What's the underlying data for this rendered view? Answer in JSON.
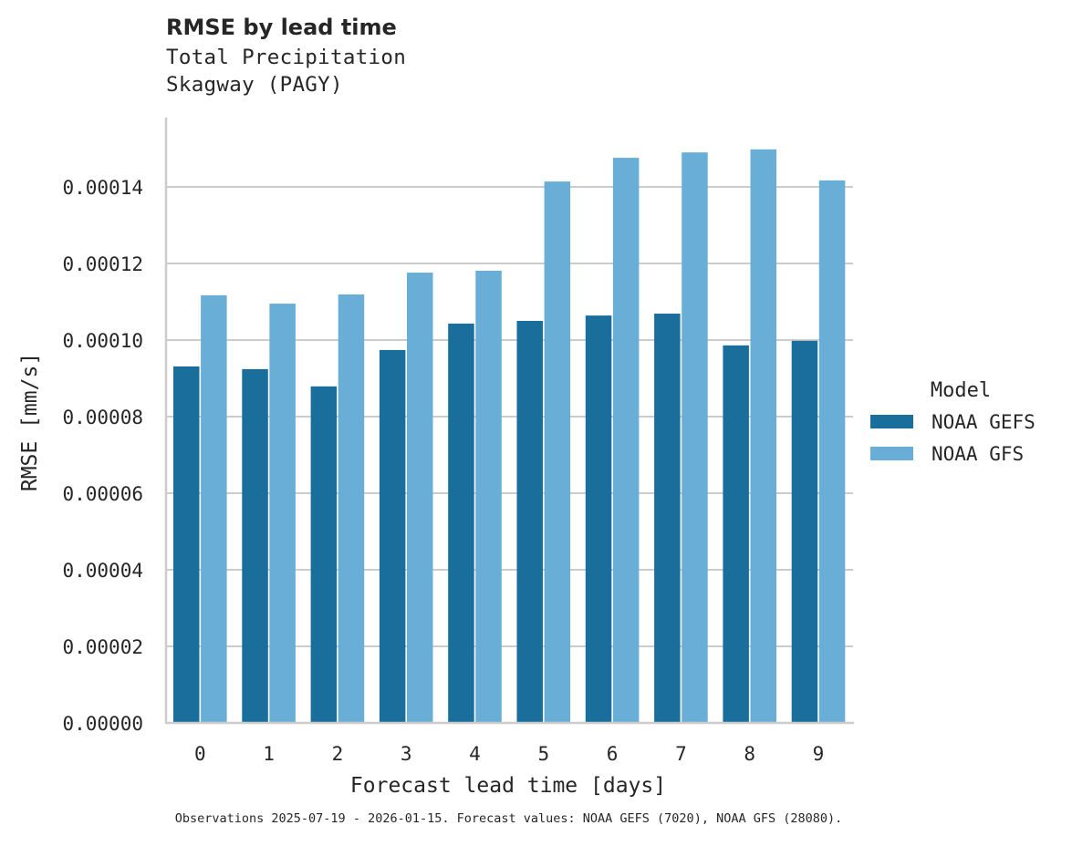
{
  "header": {
    "title": "RMSE by lead time",
    "subtitle_line1": "Total Precipitation",
    "subtitle_line2": "Skagway (PAGY)"
  },
  "footnote": "Observations 2025-07-19 - 2026-01-15. Forecast values: NOAA GEFS (7020), NOAA GFS (28080).",
  "legend": {
    "title": "Model",
    "items": [
      {
        "label": "NOAA GEFS",
        "color": "#1a6e9c"
      },
      {
        "label": "NOAA GFS",
        "color": "#68aed6"
      }
    ]
  },
  "chart_data": {
    "type": "bar",
    "title": "RMSE by lead time",
    "subtitle": "Total Precipitation — Skagway (PAGY)",
    "xlabel": "Forecast lead time [days]",
    "ylabel": "RMSE [mm/s]",
    "categories": [
      "0",
      "1",
      "2",
      "3",
      "4",
      "5",
      "6",
      "7",
      "8",
      "9"
    ],
    "series": [
      {
        "name": "NOAA GEFS",
        "color": "#1a6e9c",
        "values": [
          9.31e-05,
          9.24e-05,
          8.79e-05,
          9.74e-05,
          0.0001043,
          0.000105,
          0.0001064,
          0.0001069,
          9.86e-05,
          9.98e-05
        ]
      },
      {
        "name": "NOAA GFS",
        "color": "#68aed6",
        "values": [
          0.0001117,
          0.0001095,
          0.0001119,
          0.0001176,
          0.0001181,
          0.0001414,
          0.0001476,
          0.000149,
          0.0001498,
          0.0001417
        ]
      }
    ],
    "yticks": [
      "0.00000",
      "0.00002",
      "0.00004",
      "0.00006",
      "0.00008",
      "0.00010",
      "0.00012",
      "0.00014"
    ],
    "ytick_values": [
      0,
      2e-05,
      4e-05,
      6e-05,
      8e-05,
      0.0001,
      0.00012,
      0.00014
    ],
    "ylim": [
      0,
      0.0001575
    ],
    "grid": "horizontal",
    "legend_position": "right"
  }
}
